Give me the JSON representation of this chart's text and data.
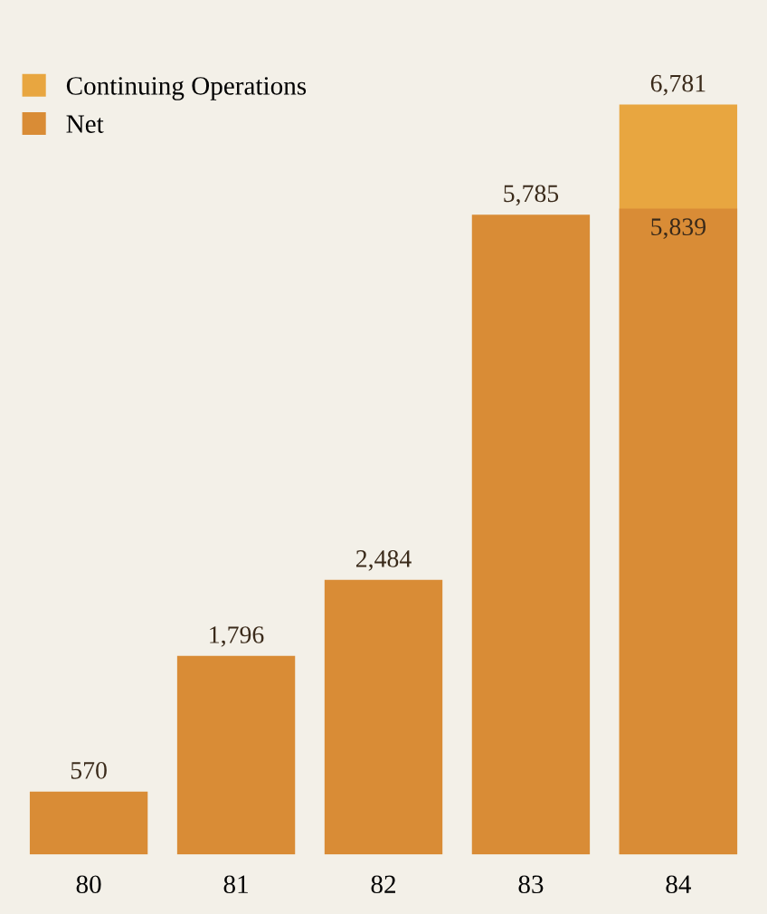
{
  "chart_data": {
    "type": "bar",
    "categories": [
      "80",
      "81",
      "82",
      "83",
      "84"
    ],
    "series": [
      {
        "name": "Continuing Operations",
        "color": "#e8a640",
        "values": [
          null,
          null,
          null,
          null,
          6781
        ],
        "value_labels": [
          null,
          null,
          null,
          null,
          "6,781"
        ]
      },
      {
        "name": "Net",
        "color": "#d98c36",
        "values": [
          570,
          1796,
          2484,
          5785,
          5839
        ],
        "value_labels": [
          "570",
          "1,796",
          "2,484",
          "5,785",
          "5,839"
        ]
      }
    ],
    "legend": "top left",
    "grid": false
  }
}
